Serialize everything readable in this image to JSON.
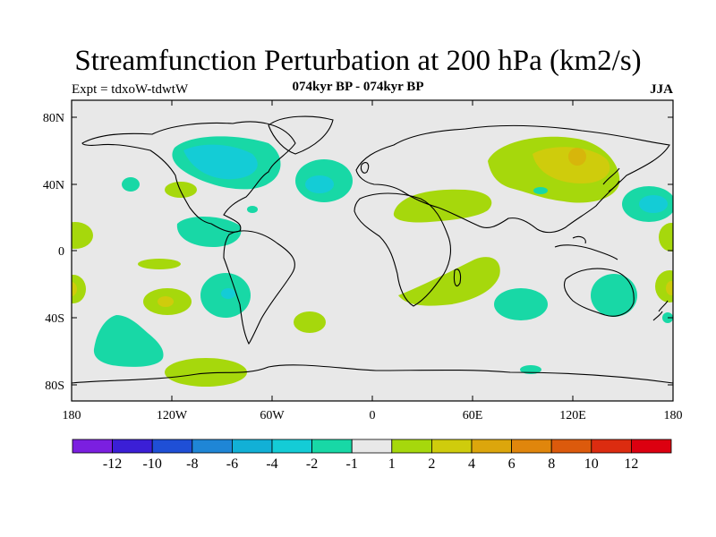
{
  "header": {
    "title": "Streamfunction Perturbation at 200 hPa (km2/s)",
    "left_label": "Expt = tdxoW-tdwtW",
    "center_label": "074kyr BP - 074kyr BP",
    "right_label": "JJA"
  },
  "axes": {
    "lat_ticks": [
      "80N",
      "40N",
      "0",
      "40S",
      "80S"
    ],
    "lon_ticks": [
      "180",
      "120W",
      "60W",
      "0",
      "60E",
      "120E",
      "180"
    ]
  },
  "colorbar": {
    "colors": [
      "#7b1fe0",
      "#3b1fd6",
      "#1f4fd6",
      "#1f86d6",
      "#12b0d6",
      "#14ccd6",
      "#18d8a6",
      "#e8e8e8",
      "#a6d80c",
      "#cfcc0c",
      "#dca60c",
      "#e0860c",
      "#dc5a0c",
      "#dc2c10",
      "#dc0010"
    ],
    "labels": [
      "-12",
      "-10",
      "-8",
      "-6",
      "-4",
      "-2",
      "-1",
      "1",
      "2",
      "4",
      "6",
      "8",
      "10",
      "12"
    ]
  },
  "map_colors": {
    "background": "#e8e8e8",
    "neg_light": "#18d8a6",
    "neg_mid": "#14ccd6",
    "pos_light": "#a6d80c",
    "pos_mid": "#cfcc0c",
    "pos_strong": "#dca60c"
  }
}
